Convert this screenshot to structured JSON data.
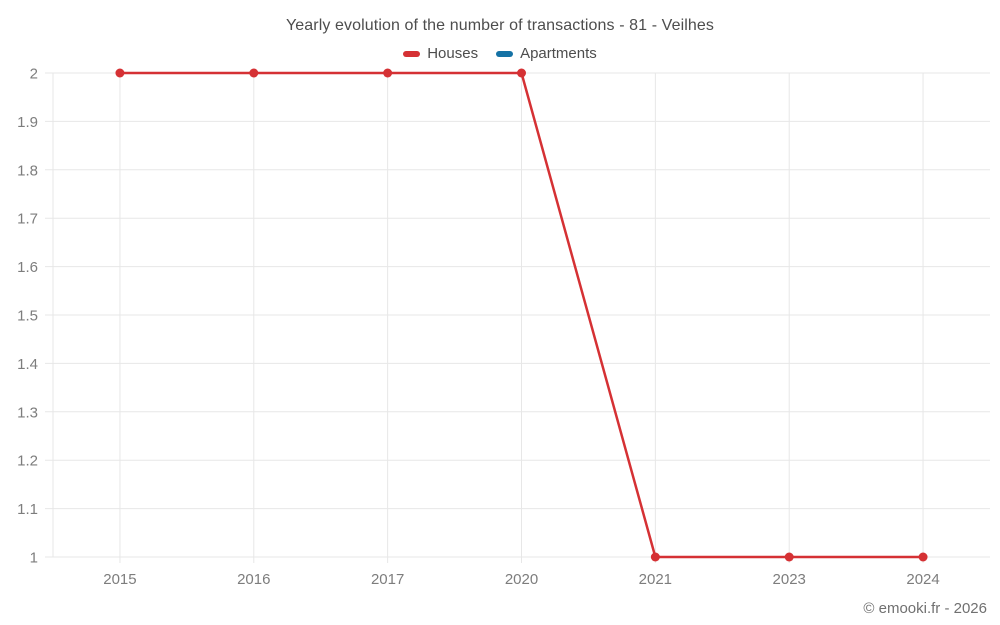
{
  "header": {
    "title": "Yearly evolution of the number of transactions - 81 - Veilhes"
  },
  "legend": {
    "items": [
      {
        "label": "Houses",
        "color": "#d53134"
      },
      {
        "label": "Apartments",
        "color": "#1572a5"
      }
    ]
  },
  "footer": {
    "credit": "© emooki.fr - 2026"
  },
  "chart_data": {
    "type": "line",
    "title": "Yearly evolution of the number of transactions - 81 - Veilhes",
    "categories": [
      "2015",
      "2016",
      "2017",
      "2020",
      "2021",
      "2023",
      "2024"
    ],
    "series": [
      {
        "name": "Houses",
        "color": "#d53134",
        "values": [
          2,
          2,
          2,
          2,
          1,
          1,
          1
        ]
      },
      {
        "name": "Apartments",
        "color": "#1572a5",
        "values": []
      }
    ],
    "xlabel": "",
    "ylabel": "",
    "ylim": [
      1,
      2
    ],
    "yticks": [
      {
        "value": 1,
        "label": "1"
      },
      {
        "value": 1.1,
        "label": "1.1"
      },
      {
        "value": 1.2,
        "label": "1.2"
      },
      {
        "value": 1.3,
        "label": "1.3"
      },
      {
        "value": 1.4,
        "label": "1.4"
      },
      {
        "value": 1.5,
        "label": "1.5"
      },
      {
        "value": 1.6,
        "label": "1.6"
      },
      {
        "value": 1.7,
        "label": "1.7"
      },
      {
        "value": 1.8,
        "label": "1.8"
      },
      {
        "value": 1.9,
        "label": "1.9"
      },
      {
        "value": 2,
        "label": "2"
      }
    ],
    "grid": true,
    "legend_position": "top",
    "grid_color": "#e7e7e7",
    "axis_text_color": "#7d7d7d",
    "credit": "© emooki.fr - 2026"
  }
}
